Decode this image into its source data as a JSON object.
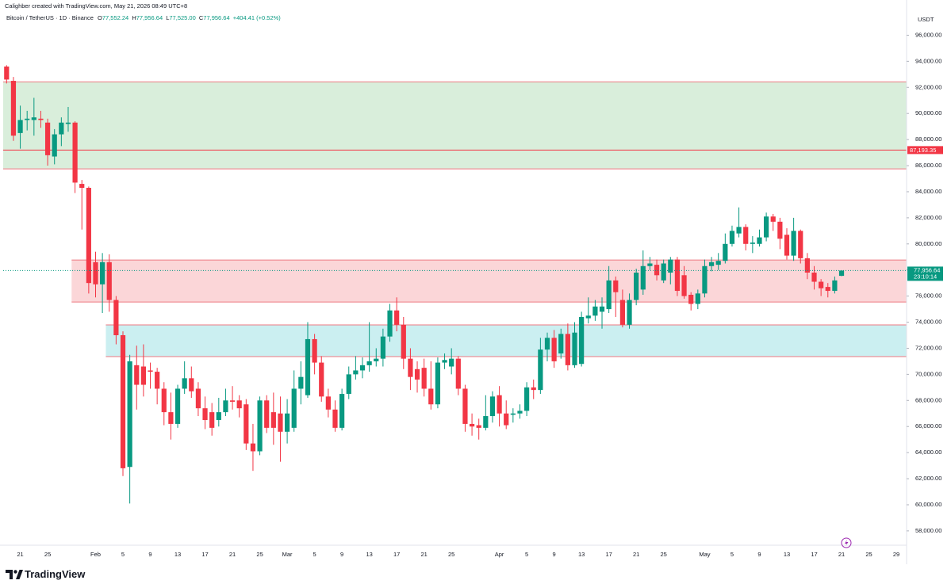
{
  "header": {
    "credit": "Calighber created with TradingView.com, May 21, 2026 08:49 UTC+8"
  },
  "chart_data": {
    "type": "candlestick",
    "symbol": "Bitcoin / TetherUS · 1D · Binance",
    "ohlc_legend": [
      {
        "key": "O",
        "value": "77,552.24"
      },
      {
        "key": "H",
        "value": "77,956.64"
      },
      {
        "key": "L",
        "value": "77,525.00"
      },
      {
        "key": "C",
        "value": "77,956.64"
      }
    ],
    "change": "+404.41 (+0.52%)",
    "currency": "USDT",
    "categories": [
      null,
      null,
      "21",
      null,
      null,
      null,
      "25",
      null,
      null,
      null,
      null,
      null,
      null,
      "Feb",
      null,
      null,
      null,
      "5",
      null,
      null,
      null,
      "9",
      null,
      null,
      null,
      "13",
      null,
      null,
      null,
      "17",
      null,
      null,
      null,
      "21",
      null,
      null,
      null,
      "25",
      null,
      null,
      null,
      "Mar",
      null,
      null,
      null,
      "5",
      null,
      null,
      null,
      "9",
      null,
      null,
      null,
      "13",
      null,
      null,
      null,
      "17",
      null,
      null,
      null,
      "21",
      null,
      null,
      null,
      "25",
      null,
      null,
      null,
      null,
      null,
      null,
      "Apr",
      null,
      null,
      null,
      "5",
      null,
      null,
      null,
      "9",
      null,
      null,
      null,
      "13",
      null,
      null,
      null,
      "17",
      null,
      null,
      null,
      "21",
      null,
      null,
      null,
      "25",
      null,
      null,
      null,
      null,
      null,
      "May",
      null,
      null,
      null,
      "5",
      null,
      null,
      null,
      "9",
      null,
      null,
      null,
      "13",
      null,
      null,
      null,
      "17",
      null,
      null,
      null,
      "21",
      null,
      null,
      null,
      "25",
      null,
      null,
      null,
      "29",
      null
    ],
    "open": [
      93600,
      92500,
      88500,
      89500,
      89500,
      89600,
      89300,
      86700,
      88400,
      89200,
      89300,
      84600,
      84300,
      78600,
      76900,
      78600,
      75700,
      73000,
      62900,
      70700,
      70600,
      70300,
      70200,
      68900,
      67100,
      66200,
      68900,
      69700,
      68900,
      67400,
      67100,
      66500,
      67100,
      68000,
      68000,
      67700,
      64700,
      64100,
      68000,
      67100,
      67000,
      65600,
      65900,
      68900,
      68400,
      72700,
      70900,
      68300,
      67300,
      65900,
      68500,
      70000,
      70300,
      70700,
      71000,
      71200,
      72900,
      74900,
      73800,
      71200,
      70400,
      70500,
      68900,
      67700,
      70900,
      70600,
      71200,
      68900,
      66200,
      66100,
      65900,
      66800,
      68400,
      67000,
      66900,
      67000,
      67200,
      69000,
      68800,
      71900,
      72800,
      71600,
      73100,
      70700,
      70800,
      74300,
      74500,
      74800,
      75000,
      77200,
      75700,
      73800,
      75700,
      76500,
      78300,
      78400,
      77200,
      77800,
      78800,
      77600,
      76100,
      75400,
      76200,
      78300,
      78400,
      78700,
      80000,
      80800,
      81300,
      80000,
      80000,
      80500,
      82100,
      81700,
      80700,
      79100,
      81000,
      78900,
      77800,
      77100,
      76700,
      76400,
      77552.24,
      null,
      null,
      null,
      null,
      null,
      null,
      null,
      null,
      null
    ],
    "high": [
      93700,
      92800,
      90600,
      90200,
      91200,
      90200,
      89600,
      88800,
      89700,
      90500,
      89400,
      84900,
      84400,
      79400,
      79300,
      79200,
      76000,
      73300,
      71500,
      72200,
      72300,
      70900,
      70500,
      69400,
      68600,
      69200,
      71000,
      70600,
      69400,
      68300,
      67800,
      68200,
      68900,
      69100,
      68400,
      68100,
      66200,
      68300,
      68400,
      68600,
      68300,
      68100,
      70300,
      71000,
      74000,
      73100,
      71400,
      68900,
      68000,
      68900,
      70600,
      71400,
      71300,
      74000,
      72000,
      73500,
      75400,
      75900,
      74400,
      72000,
      71000,
      71200,
      71000,
      71300,
      71600,
      72000,
      71400,
      69200,
      67000,
      66600,
      68400,
      68700,
      69100,
      68000,
      67400,
      67700,
      69400,
      69600,
      72800,
      73200,
      73400,
      73500,
      73900,
      74000,
      74800,
      75900,
      75700,
      75900,
      78300,
      77500,
      76500,
      76200,
      78100,
      79500,
      79000,
      78800,
      78800,
      79000,
      79000,
      78300,
      76300,
      76500,
      78800,
      79000,
      79300,
      80800,
      81400,
      82800,
      81500,
      80600,
      81100,
      82400,
      82300,
      82000,
      81200,
      82000,
      81100,
      79300,
      78300,
      77300,
      77000,
      77500,
      77956.64,
      null,
      null,
      null,
      null,
      null,
      null,
      null,
      null,
      null
    ],
    "low": [
      92300,
      87900,
      87300,
      88700,
      88300,
      88900,
      86000,
      86100,
      87500,
      88600,
      83900,
      81100,
      76200,
      75900,
      74700,
      74800,
      72300,
      62200,
      60100,
      67300,
      68300,
      68900,
      67700,
      66100,
      65000,
      65900,
      68500,
      68200,
      66800,
      65800,
      65300,
      66000,
      66800,
      67300,
      66700,
      64200,
      62600,
      63800,
      65500,
      64600,
      63300,
      64700,
      65600,
      67700,
      68200,
      70000,
      67900,
      66700,
      65600,
      65700,
      68100,
      69600,
      69700,
      70200,
      70600,
      70600,
      72500,
      73300,
      70400,
      68800,
      68600,
      68300,
      67300,
      67400,
      70400,
      70000,
      68400,
      65600,
      65300,
      65000,
      65700,
      66300,
      66000,
      65800,
      66300,
      66600,
      66800,
      68100,
      68500,
      71000,
      70500,
      71200,
      70300,
      70500,
      70600,
      73900,
      74100,
      73500,
      74700,
      74400,
      73600,
      73500,
      75300,
      76100,
      78000,
      77200,
      77000,
      76900,
      76000,
      75800,
      74900,
      75000,
      75900,
      77900,
      78000,
      78500,
      79800,
      80500,
      79500,
      79300,
      79800,
      80200,
      81000,
      79600,
      78800,
      78700,
      78500,
      77300,
      76500,
      76000,
      75900,
      76200,
      77525,
      null,
      null,
      null,
      null,
      null,
      null,
      null,
      null,
      null
    ],
    "close": [
      92600,
      88300,
      89500,
      89600,
      89700,
      89500,
      86800,
      88400,
      89300,
      89300,
      84700,
      84300,
      77000,
      76900,
      78600,
      75700,
      73000,
      62800,
      71000,
      69200,
      69200,
      70200,
      68900,
      67100,
      66200,
      68900,
      69700,
      68700,
      67400,
      66500,
      65900,
      67100,
      68000,
      67900,
      67400,
      64700,
      64100,
      68000,
      65900,
      65900,
      65600,
      67000,
      68900,
      69800,
      72700,
      70900,
      68300,
      67300,
      65900,
      68500,
      70000,
      70300,
      70700,
      71000,
      71200,
      72900,
      74900,
      73800,
      71200,
      69800,
      69600,
      68900,
      67700,
      70900,
      71100,
      71200,
      68900,
      66200,
      66000,
      65900,
      66800,
      68300,
      67000,
      66100,
      67000,
      67200,
      69000,
      68800,
      71900,
      72800,
      71000,
      73100,
      70700,
      73200,
      74400,
      74500,
      75200,
      75200,
      77200,
      76300,
      73800,
      75700,
      77800,
      78300,
      78500,
      77600,
      78500,
      78800,
      76400,
      76000,
      75400,
      76200,
      78300,
      78600,
      78700,
      80000,
      81000,
      81300,
      80000,
      80100,
      80500,
      82100,
      81700,
      80400,
      79100,
      81000,
      78900,
      77800,
      77100,
      76600,
      76400,
      77200,
      77956.64,
      null,
      null,
      null,
      null,
      null,
      null,
      null,
      null,
      null
    ],
    "up_color": "#089981",
    "down_color": "#f23645",
    "ylim": [
      56900,
      98700
    ],
    "yticks": [
      {
        "value": 58000,
        "label": "58,000.00"
      },
      {
        "value": 60000,
        "label": "60,000.00"
      },
      {
        "value": 62000,
        "label": "62,000.00"
      },
      {
        "value": 64000,
        "label": "64,000.00"
      },
      {
        "value": 66000,
        "label": "66,000.00"
      },
      {
        "value": 68000,
        "label": "68,000.00"
      },
      {
        "value": 70000,
        "label": "70,000.00"
      },
      {
        "value": 72000,
        "label": "72,000.00"
      },
      {
        "value": 74000,
        "label": "74,000.00"
      },
      {
        "value": 76000,
        "label": "76,000.00"
      },
      {
        "value": 78000,
        "label": "78,000.00"
      },
      {
        "value": 80000,
        "label": "80,000.00"
      },
      {
        "value": 82000,
        "label": "82,000.00"
      },
      {
        "value": 84000,
        "label": "84,000.00"
      },
      {
        "value": 86000,
        "label": "86,000.00"
      },
      {
        "value": 88000,
        "label": "88,000.00"
      },
      {
        "value": 90000,
        "label": "90,000.00"
      },
      {
        "value": 92000,
        "label": "92,000.00"
      },
      {
        "value": 94000,
        "label": "94,000.00"
      },
      {
        "value": 96000,
        "label": "96,000.00"
      }
    ],
    "grid": false,
    "zone_border": "#ee7a82",
    "zones": [
      {
        "from": 0,
        "top": 92430,
        "bottom": 85750,
        "fill": "#d9eedb"
      },
      {
        "from": 10,
        "top": 78765,
        "bottom": 75547,
        "fill": "#fbd6d8"
      },
      {
        "from": 15,
        "top": 73787,
        "bottom": 71357,
        "fill": "#cbeff1"
      }
    ],
    "hlines": [
      {
        "value": 87193.35,
        "label": "87,193.35",
        "color": "#f23645"
      }
    ],
    "last_price": {
      "value": 77956.64,
      "label": "77,956.64",
      "countdown": "23:10:14",
      "color": "#089981"
    }
  },
  "footer": {
    "brand": "TradingView"
  }
}
